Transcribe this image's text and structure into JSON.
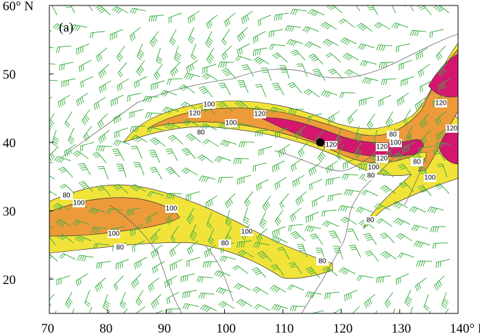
{
  "map": {
    "panel_label": "(a)",
    "lat_ticks": [
      {
        "value": 60,
        "label": "60° N"
      },
      50,
      40,
      30,
      20
    ],
    "lon_ticks": [
      70,
      80,
      90,
      100,
      110,
      120,
      130,
      {
        "value": 140,
        "label": "140° E"
      }
    ],
    "contour_labels": [
      "120",
      "100",
      "80",
      "100",
      "120",
      "120",
      "100",
      "120",
      "120",
      "100",
      "80",
      "80",
      "100",
      "120",
      "120",
      "80",
      "80",
      "100",
      "80",
      "100",
      "100",
      "80",
      "80",
      "100",
      "80"
    ]
  }
}
